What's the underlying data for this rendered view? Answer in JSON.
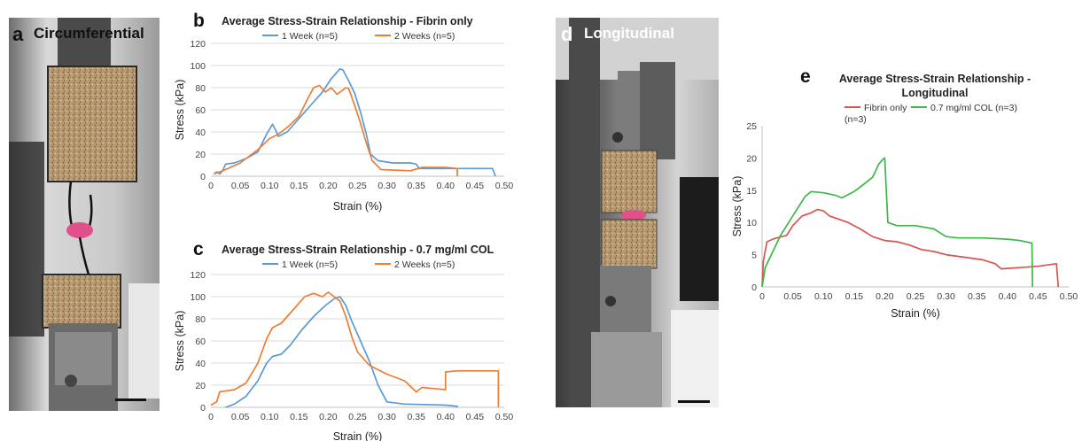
{
  "panels": {
    "a": {
      "letter": "a",
      "title": "Circumferential"
    },
    "d": {
      "letter": "d",
      "title": "Longitudinal"
    }
  },
  "colors": {
    "week1": "#5b9bd5",
    "week2": "#ed7d31",
    "fibrin": "#d9534f",
    "col": "#3cb84a"
  },
  "chart_data": [
    {
      "id": "b",
      "letter": "b",
      "type": "line",
      "title": "Average Stress-Strain Relationship - Fibrin only",
      "xlabel": "Strain (%)",
      "ylabel": "Stress (kPa)",
      "xlim": [
        0,
        0.5
      ],
      "ylim": [
        0,
        120
      ],
      "xticks": [
        "0",
        "0.05",
        "0.10",
        "0.15",
        "0.20",
        "0.25",
        "0.30",
        "0.35",
        "0.40",
        "0.45",
        "0.50"
      ],
      "yticks": [
        "0",
        "20",
        "40",
        "60",
        "80",
        "100",
        "120"
      ],
      "legend": "top",
      "grid": true,
      "series": [
        {
          "name": "1 Week (n=5)",
          "color": "#5b9bd5",
          "points": [
            [
              0.005,
              2
            ],
            [
              0.01,
              4
            ],
            [
              0.015,
              2
            ],
            [
              0.02,
              5
            ],
            [
              0.025,
              11
            ],
            [
              0.04,
              12
            ],
            [
              0.06,
              16
            ],
            [
              0.08,
              22
            ],
            [
              0.095,
              38
            ],
            [
              0.105,
              47
            ],
            [
              0.11,
              42
            ],
            [
              0.115,
              36
            ],
            [
              0.13,
              40
            ],
            [
              0.15,
              52
            ],
            [
              0.17,
              64
            ],
            [
              0.19,
              76
            ],
            [
              0.205,
              88
            ],
            [
              0.22,
              97
            ],
            [
              0.225,
              96
            ],
            [
              0.235,
              86
            ],
            [
              0.245,
              75
            ],
            [
              0.255,
              58
            ],
            [
              0.265,
              38
            ],
            [
              0.272,
              20
            ],
            [
              0.285,
              14
            ],
            [
              0.31,
              12
            ],
            [
              0.34,
              12
            ],
            [
              0.35,
              11
            ],
            [
              0.355,
              7
            ],
            [
              0.4,
              7
            ],
            [
              0.45,
              7
            ],
            [
              0.48,
              7
            ],
            [
              0.485,
              0
            ]
          ]
        },
        {
          "name": "2 Weeks (n=5)",
          "color": "#ed7d31",
          "points": [
            [
              0.005,
              2
            ],
            [
              0.015,
              4
            ],
            [
              0.025,
              6
            ],
            [
              0.05,
              12
            ],
            [
              0.08,
              24
            ],
            [
              0.1,
              34
            ],
            [
              0.115,
              38
            ],
            [
              0.13,
              44
            ],
            [
              0.15,
              54
            ],
            [
              0.165,
              70
            ],
            [
              0.175,
              80
            ],
            [
              0.185,
              82
            ],
            [
              0.195,
              76
            ],
            [
              0.205,
              80
            ],
            [
              0.215,
              74
            ],
            [
              0.23,
              80
            ],
            [
              0.235,
              79
            ],
            [
              0.245,
              64
            ],
            [
              0.255,
              48
            ],
            [
              0.265,
              30
            ],
            [
              0.275,
              14
            ],
            [
              0.29,
              6
            ],
            [
              0.34,
              5
            ],
            [
              0.36,
              8
            ],
            [
              0.4,
              8
            ],
            [
              0.42,
              7
            ],
            [
              0.42,
              0
            ]
          ]
        }
      ]
    },
    {
      "id": "c",
      "letter": "c",
      "type": "line",
      "title": "Average Stress-Strain Relationship - 0.7 mg/ml COL",
      "xlabel": "Strain (%)",
      "ylabel": "Stress (kPa)",
      "xlim": [
        0,
        0.5
      ],
      "ylim": [
        0,
        120
      ],
      "xticks": [
        "0",
        "0.05",
        "0.10",
        "0.15",
        "0.20",
        "0.25",
        "0.30",
        "0.35",
        "0.40",
        "0.45",
        "0.50"
      ],
      "yticks": [
        "0",
        "20",
        "40",
        "60",
        "80",
        "100",
        "120"
      ],
      "legend": "top",
      "grid": true,
      "series": [
        {
          "name": "1 Week (n=5)",
          "color": "#5b9bd5",
          "points": [
            [
              0.025,
              0
            ],
            [
              0.04,
              3
            ],
            [
              0.06,
              10
            ],
            [
              0.08,
              24
            ],
            [
              0.095,
              40
            ],
            [
              0.105,
              46
            ],
            [
              0.12,
              48
            ],
            [
              0.135,
              56
            ],
            [
              0.155,
              70
            ],
            [
              0.175,
              82
            ],
            [
              0.195,
              92
            ],
            [
              0.21,
              98
            ],
            [
              0.22,
              100
            ],
            [
              0.23,
              92
            ],
            [
              0.24,
              78
            ],
            [
              0.255,
              60
            ],
            [
              0.27,
              42
            ],
            [
              0.285,
              20
            ],
            [
              0.3,
              5
            ],
            [
              0.33,
              3
            ],
            [
              0.4,
              2
            ],
            [
              0.42,
              1
            ],
            [
              0.42,
              0
            ]
          ]
        },
        {
          "name": "2 Weeks (n=5)",
          "color": "#ed7d31",
          "points": [
            [
              0,
              2
            ],
            [
              0.01,
              5
            ],
            [
              0.015,
              14
            ],
            [
              0.04,
              16
            ],
            [
              0.06,
              22
            ],
            [
              0.08,
              40
            ],
            [
              0.095,
              62
            ],
            [
              0.105,
              72
            ],
            [
              0.12,
              76
            ],
            [
              0.14,
              88
            ],
            [
              0.16,
              100
            ],
            [
              0.175,
              103
            ],
            [
              0.19,
              100
            ],
            [
              0.2,
              104
            ],
            [
              0.21,
              100
            ],
            [
              0.22,
              96
            ],
            [
              0.23,
              82
            ],
            [
              0.24,
              64
            ],
            [
              0.25,
              50
            ],
            [
              0.27,
              38
            ],
            [
              0.3,
              30
            ],
            [
              0.33,
              24
            ],
            [
              0.35,
              14
            ],
            [
              0.36,
              18
            ],
            [
              0.38,
              17
            ],
            [
              0.4,
              16
            ],
            [
              0.4,
              32
            ],
            [
              0.42,
              33
            ],
            [
              0.49,
              33
            ],
            [
              0.49,
              0
            ]
          ]
        }
      ]
    },
    {
      "id": "e",
      "letter": "e",
      "type": "line",
      "title": "Average Stress-Strain Relationship - Longitudinal",
      "title_lines": [
        "Average Stress-Strain Relationship -",
        "Longitudinal"
      ],
      "xlabel": "Strain (%)",
      "ylabel": "Stress (kPa)",
      "xlim": [
        0,
        0.5
      ],
      "ylim": [
        0,
        25
      ],
      "xticks": [
        "0",
        "0.05",
        "0.10",
        "0.15",
        "0.20",
        "0.25",
        "0.30",
        "0.35",
        "0.40",
        "0.45",
        "0.50"
      ],
      "yticks": [
        "0",
        "5",
        "10",
        "15",
        "20",
        "25"
      ],
      "legend": "top",
      "grid": false,
      "series": [
        {
          "name": "Fibrin only (n=3)",
          "name_lines": [
            "Fibrin only",
            "(n=3)"
          ],
          "color": "#d9534f",
          "points": [
            [
              0,
              0
            ],
            [
              0.002,
              4
            ],
            [
              0.008,
              7
            ],
            [
              0.02,
              7.5
            ],
            [
              0.04,
              8
            ],
            [
              0.05,
              9.5
            ],
            [
              0.065,
              11
            ],
            [
              0.08,
              11.5
            ],
            [
              0.09,
              12
            ],
            [
              0.1,
              11.8
            ],
            [
              0.11,
              11
            ],
            [
              0.125,
              10.5
            ],
            [
              0.14,
              10
            ],
            [
              0.16,
              9
            ],
            [
              0.18,
              7.8
            ],
            [
              0.2,
              7.2
            ],
            [
              0.22,
              7
            ],
            [
              0.24,
              6.5
            ],
            [
              0.26,
              5.8
            ],
            [
              0.28,
              5.5
            ],
            [
              0.3,
              5
            ],
            [
              0.33,
              4.6
            ],
            [
              0.36,
              4.2
            ],
            [
              0.38,
              3.6
            ],
            [
              0.39,
              2.8
            ],
            [
              0.42,
              3
            ],
            [
              0.45,
              3.2
            ],
            [
              0.48,
              3.6
            ],
            [
              0.483,
              0
            ]
          ]
        },
        {
          "name": "0.7 mg/ml COL (n=3)",
          "color": "#3cb84a",
          "points": [
            [
              0,
              0
            ],
            [
              0.005,
              3
            ],
            [
              0.015,
              5
            ],
            [
              0.03,
              8
            ],
            [
              0.05,
              11
            ],
            [
              0.07,
              14
            ],
            [
              0.08,
              14.8
            ],
            [
              0.1,
              14.6
            ],
            [
              0.12,
              14.2
            ],
            [
              0.13,
              13.8
            ],
            [
              0.15,
              14.8
            ],
            [
              0.16,
              15.5
            ],
            [
              0.18,
              17
            ],
            [
              0.19,
              19
            ],
            [
              0.197,
              19.8
            ],
            [
              0.2,
              20
            ],
            [
              0.205,
              10
            ],
            [
              0.22,
              9.5
            ],
            [
              0.25,
              9.5
            ],
            [
              0.28,
              9
            ],
            [
              0.3,
              7.8
            ],
            [
              0.32,
              7.6
            ],
            [
              0.36,
              7.6
            ],
            [
              0.4,
              7.4
            ],
            [
              0.42,
              7.2
            ],
            [
              0.44,
              6.8
            ],
            [
              0.441,
              0
            ]
          ]
        }
      ]
    }
  ]
}
